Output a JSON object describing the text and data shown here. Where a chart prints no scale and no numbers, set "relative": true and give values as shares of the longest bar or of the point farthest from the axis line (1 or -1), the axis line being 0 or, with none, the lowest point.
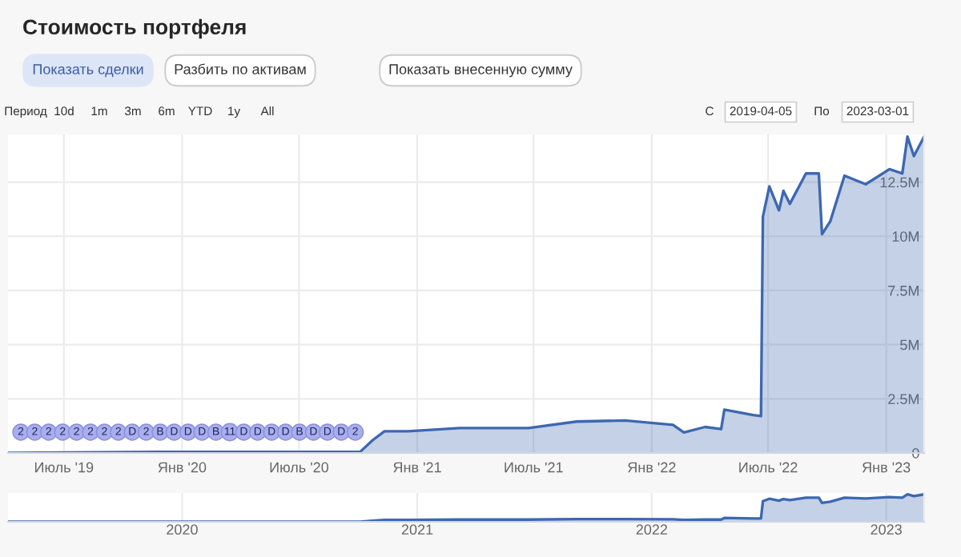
{
  "chart_data": [
    {
      "type": "area",
      "title": "Стоимость портфеля",
      "annotations": [
        "Показать сделки",
        "Разбить по активам",
        "Показать внесенную сумму",
        "Период",
        "10d",
        "1m",
        "3m",
        "6m",
        "YTD",
        "1y",
        "All",
        "С",
        "2019-04-05",
        "По",
        "2023-03-01",
        "2",
        "2",
        "2",
        "2",
        "2",
        "2",
        "2",
        "2",
        "D",
        "2",
        "B",
        "D",
        "D",
        "D",
        "B",
        "11",
        "D",
        "D",
        "D",
        "D",
        "B",
        "D",
        "D",
        "D",
        "2"
      ],
      "x": [
        "2019-04-05",
        "2019-11-26",
        "2020-10-04",
        "2020-10-24",
        "2020-11-11",
        "2020-12-18",
        "2021-03-08",
        "2021-06-23",
        "2021-09-06",
        "2021-11-20",
        "2022-02-03",
        "2022-02-20",
        "2022-03-25",
        "2022-04-19",
        "2022-04-24",
        "2022-06-08",
        "2022-06-20",
        "2022-06-23",
        "2022-07-03",
        "2022-07-18",
        "2022-07-25",
        "2022-08-04",
        "2022-08-29",
        "2022-09-18",
        "2022-09-23",
        "2022-10-06",
        "2022-10-28",
        "2022-11-30",
        "2023-01-06",
        "2023-01-26",
        "2023-02-03",
        "2023-02-13",
        "2023-03-01"
      ],
      "series": [
        {
          "color": "#3d68b0",
          "values": [
            0.0,
            0.05,
            0.05,
            0.6,
            1.0,
            1.0,
            1.15,
            1.15,
            1.45,
            1.5,
            1.3,
            0.95,
            1.2,
            1.1,
            2.0,
            1.75,
            1.7,
            10.9,
            12.3,
            11.2,
            12.1,
            11.5,
            12.9,
            12.9,
            10.1,
            10.7,
            12.8,
            12.4,
            13.1,
            12.9,
            14.6,
            13.7,
            14.6
          ]
        }
      ],
      "xlim": [
        "2019-04-05",
        "2023-03-01"
      ],
      "ylim": [
        0,
        14.7
      ],
      "xticks": [
        {
          "value": "2019-07-01",
          "label": "Июль '19"
        },
        {
          "value": "2020-01-01",
          "label": "Янв '20"
        },
        {
          "value": "2020-07-01",
          "label": "Июль '20"
        },
        {
          "value": "2021-01-01",
          "label": "Янв '21"
        },
        {
          "value": "2021-07-01",
          "label": "Июль '21"
        },
        {
          "value": "2022-01-01",
          "label": "Янв '22"
        },
        {
          "value": "2022-07-01",
          "label": "Июль '22"
        },
        {
          "value": "2023-01-01",
          "label": "Янв '23"
        }
      ],
      "yticks": [
        0,
        {
          "value": 2.5,
          "label": "2.5M"
        },
        {
          "value": 5,
          "label": "5M"
        },
        {
          "value": 7.5,
          "label": "7.5M"
        },
        {
          "value": 10,
          "label": "10M"
        },
        {
          "value": 12.5,
          "label": "12.5M"
        }
      ],
      "grid": true,
      "legend": false
    },
    {
      "type": "area",
      "x": [
        "2019-04-05",
        "2019-11-26",
        "2020-10-04",
        "2020-10-24",
        "2020-11-11",
        "2020-12-18",
        "2021-03-08",
        "2021-06-23",
        "2021-09-06",
        "2021-11-20",
        "2022-02-03",
        "2022-02-20",
        "2022-03-25",
        "2022-04-19",
        "2022-04-24",
        "2022-06-08",
        "2022-06-20",
        "2022-06-23",
        "2022-07-03",
        "2022-07-18",
        "2022-07-25",
        "2022-08-04",
        "2022-08-29",
        "2022-09-18",
        "2022-09-23",
        "2022-10-06",
        "2022-10-28",
        "2022-11-30",
        "2023-01-06",
        "2023-01-26",
        "2023-02-03",
        "2023-02-13",
        "2023-03-01"
      ],
      "series": [
        {
          "color": "#3d68b0",
          "values": [
            0.0,
            0.003,
            0.003,
            0.04,
            0.07,
            0.07,
            0.08,
            0.08,
            0.1,
            0.1,
            0.09,
            0.07,
            0.08,
            0.08,
            0.14,
            0.12,
            0.12,
            0.75,
            0.84,
            0.77,
            0.83,
            0.79,
            0.88,
            0.88,
            0.69,
            0.73,
            0.88,
            0.85,
            0.9,
            0.88,
            1,
            0.94,
            1
          ]
        }
      ],
      "relative": true,
      "xlim": [
        "2019-04-05",
        "2023-03-01"
      ],
      "xticks": [
        {
          "value": "2020-01-01",
          "label": "2020"
        },
        {
          "value": "2021-01-01",
          "label": "2021"
        },
        {
          "value": "2022-01-01",
          "label": "2022"
        },
        {
          "value": "2023-01-01",
          "label": "2023"
        }
      ],
      "tick_labels": "x",
      "grid": "x",
      "legend": false
    }
  ]
}
